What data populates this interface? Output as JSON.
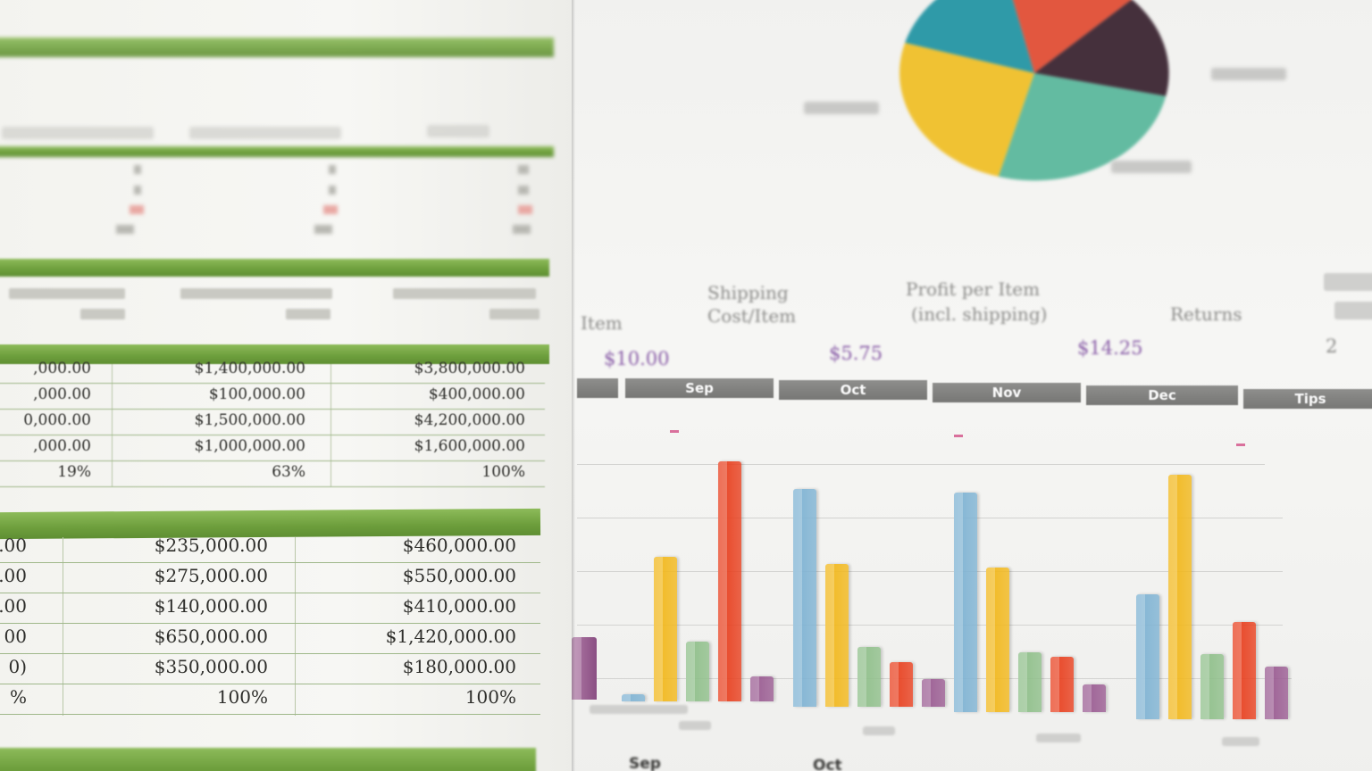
{
  "scene": "photo",
  "colors": {
    "spreadsheet_green": "#6d9e3c",
    "bar_blue": "#7fb3d3",
    "bar_yellow": "#f2b81c",
    "bar_green": "#8fbf8a",
    "bar_red": "#e8401f",
    "bar_purple": "#9a5c92",
    "pie_teal": "#2f9aa8",
    "pie_red": "#e2573f",
    "pie_dark": "#45303c",
    "pie_mint": "#63bba1",
    "pie_yellow": "#f0c233",
    "price_purple": "#8a5ea8"
  },
  "spreadsheet": {
    "section3_rows": [
      {
        "c1": ",000.00",
        "c2": "$1,400,000.00",
        "c3": "$3,800,000.00"
      },
      {
        "c1": ",000.00",
        "c2": "$100,000.00",
        "c3": "$400,000.00"
      },
      {
        "c1": "0,000.00",
        "c2": "$1,500,000.00",
        "c3": "$4,200,000.00"
      },
      {
        "c1": ",000.00",
        "c2": "$1,000,000.00",
        "c3": "$1,600,000.00"
      },
      {
        "c1": "19%",
        "c2": "63%",
        "c3": "100%"
      }
    ],
    "section4_rows": [
      {
        "c1": "0.00",
        "c2": "$235,000.00",
        "c3": "$460,000.00"
      },
      {
        "c1": "0.00",
        "c2": "$275,000.00",
        "c3": "$550,000.00"
      },
      {
        "c1": "0.00",
        "c2": "$140,000.00",
        "c3": "$410,000.00"
      },
      {
        "c1": "00",
        "c2": "$650,000.00",
        "c3": "$1,420,000.00"
      },
      {
        "c1": "0)",
        "c2": "$350,000.00",
        "c3": "$180,000.00"
      },
      {
        "c1": "%",
        "c2": "100%",
        "c3": "100%"
      }
    ]
  },
  "chart_sheet": {
    "columns": [
      {
        "line1": "",
        "line2": "Item"
      },
      {
        "line1": "Shipping",
        "line2": "Cost/Item"
      },
      {
        "line1": "Profit per Item",
        "line2": "(incl. shipping)"
      },
      {
        "line1": "",
        "line2": "Returns"
      }
    ],
    "prices": [
      "$10.00",
      "$5.75",
      "$14.25",
      "2"
    ],
    "months": [
      "Sep",
      "Oct",
      "Nov",
      "Dec",
      "Tips"
    ],
    "bottom_labels": [
      "Sep",
      "Oct"
    ]
  },
  "chart_data": {
    "type": "bar",
    "categories": [
      "Sep",
      "Oct",
      "Nov",
      "Dec"
    ],
    "series": [
      {
        "color": "#7fb3d3",
        "values": [
          3,
          87,
          88,
          50
        ]
      },
      {
        "color": "#f2b81c",
        "values": [
          58,
          57,
          58,
          98
        ]
      },
      {
        "color": "#8fbf8a",
        "values": [
          24,
          24,
          24,
          26
        ]
      },
      {
        "color": "#e8401f",
        "values": [
          96,
          18,
          22,
          39
        ]
      },
      {
        "color": "#9a5c92",
        "values": [
          10,
          11,
          11,
          21
        ]
      }
    ],
    "ylim": [
      0,
      100
    ]
  }
}
